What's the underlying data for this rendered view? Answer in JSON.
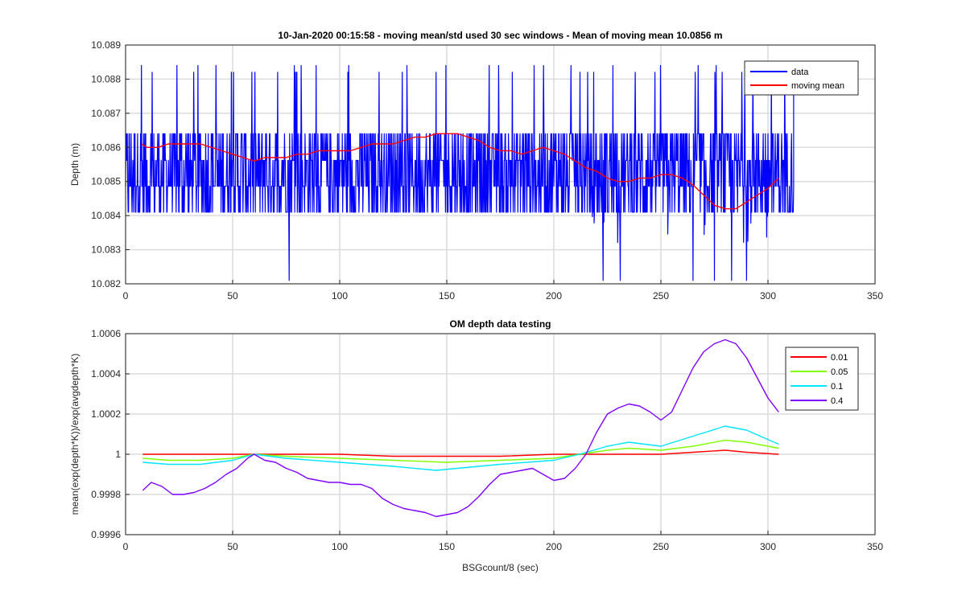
{
  "chart_data": [
    {
      "type": "line",
      "title": "10-Jan-2020 00:15:58 - moving mean/std used 30 sec windows - Mean of moving mean 10.0856 m",
      "xlabel": "",
      "ylabel": "Depth (m)",
      "xlim": [
        0,
        350
      ],
      "ylim": [
        10.082,
        10.089
      ],
      "xticks": [
        "0",
        "50",
        "100",
        "150",
        "200",
        "250",
        "300",
        "350"
      ],
      "yticks": [
        "10.082",
        "10.083",
        "10.084",
        "10.085",
        "10.086",
        "10.087",
        "10.088",
        "10.089"
      ],
      "grid": true,
      "legend_position": "top-right",
      "series": [
        {
          "name": "data",
          "color": "#0000ff",
          "data_range_x": [
            0,
            312
          ],
          "typical_band": [
            10.0841,
            10.0864
          ],
          "upper_spikes": [
            10.0882,
            10.0884
          ],
          "low_spikes": [
            [
              76.5,
              10.0821
            ],
            [
              223,
              10.0821
            ],
            [
              231,
              10.0821
            ],
            [
              265,
              10.0821
            ],
            [
              275,
              10.0821
            ],
            [
              283,
              10.0821
            ],
            [
              290,
              10.0821
            ]
          ]
        },
        {
          "name": "moving mean",
          "color": "#ff0000",
          "x": [
            7.5,
            10,
            15,
            20,
            25,
            30,
            35,
            40,
            45,
            50,
            55,
            60,
            65,
            70,
            75,
            80,
            85,
            90,
            95,
            100,
            105,
            110,
            115,
            120,
            125,
            130,
            135,
            140,
            145,
            150,
            155,
            160,
            165,
            170,
            175,
            180,
            185,
            190,
            195,
            200,
            205,
            210,
            215,
            220,
            225,
            230,
            235,
            240,
            245,
            250,
            255,
            260,
            265,
            270,
            275,
            280,
            285,
            290,
            295,
            300,
            305
          ],
          "y": [
            10.0861,
            10.086,
            10.086,
            10.0861,
            10.0861,
            10.0861,
            10.0861,
            10.086,
            10.0859,
            10.0858,
            10.0857,
            10.0856,
            10.0857,
            10.0857,
            10.0857,
            10.0858,
            10.0858,
            10.0859,
            10.0859,
            10.0859,
            10.0859,
            10.086,
            10.0861,
            10.0861,
            10.0861,
            10.0862,
            10.0863,
            10.0863,
            10.0864,
            10.0864,
            10.0864,
            10.0863,
            10.0862,
            10.086,
            10.0859,
            10.0859,
            10.0858,
            10.0859,
            10.086,
            10.0859,
            10.0858,
            10.0856,
            10.0854,
            10.0853,
            10.0851,
            10.085,
            10.085,
            10.0851,
            10.0851,
            10.0852,
            10.0852,
            10.0851,
            10.0849,
            10.0846,
            10.0843,
            10.0842,
            10.0842,
            10.0844,
            10.0846,
            10.0848,
            10.0851
          ]
        }
      ]
    },
    {
      "type": "line",
      "title": "OM depth data testing",
      "xlabel": "BSGcount/8 (sec)",
      "ylabel": "mean(exp(depth*K))/exp(avgdepth*K)",
      "xlim": [
        0,
        350
      ],
      "ylim": [
        0.9996,
        1.0006
      ],
      "xticks": [
        "0",
        "50",
        "100",
        "150",
        "200",
        "250",
        "300",
        "350"
      ],
      "yticks": [
        "0.9996",
        "0.9998",
        "1",
        "1.0002",
        "1.0004",
        "1.0006"
      ],
      "grid": true,
      "legend_position": "top-right",
      "series": [
        {
          "name": "0.01",
          "color": "#ff0000",
          "x": [
            8,
            25,
            50,
            60,
            80,
            100,
            125,
            150,
            175,
            200,
            212,
            225,
            250,
            265,
            280,
            290,
            305
          ],
          "y": [
            1.0,
            1.0,
            1.0,
            1.0,
            1.0,
            1.0,
            0.99999,
            0.99999,
            0.99999,
            1.0,
            1.0,
            1.0,
            1.0,
            1.00001,
            1.00002,
            1.00001,
            1.0
          ]
        },
        {
          "name": "0.05",
          "color": "#80ff00",
          "x": [
            8,
            20,
            35,
            50,
            60,
            75,
            100,
            125,
            150,
            175,
            200,
            212,
            225,
            235,
            250,
            265,
            280,
            290,
            305
          ],
          "y": [
            0.99998,
            0.99997,
            0.99997,
            0.99998,
            1.0,
            0.99999,
            0.99998,
            0.99997,
            0.99996,
            0.99997,
            0.99998,
            1.0,
            1.00002,
            1.00003,
            1.00002,
            1.00004,
            1.00007,
            1.00006,
            1.00003
          ]
        },
        {
          "name": "0.1",
          "color": "#00e5ff",
          "x": [
            8,
            20,
            35,
            50,
            60,
            75,
            100,
            125,
            145,
            155,
            175,
            200,
            212,
            225,
            235,
            250,
            265,
            280,
            290,
            305
          ],
          "y": [
            0.99996,
            0.99995,
            0.99995,
            0.99997,
            1.0,
            0.99998,
            0.99996,
            0.99994,
            0.99992,
            0.99993,
            0.99995,
            0.99997,
            1.0,
            1.00004,
            1.00006,
            1.00004,
            1.00009,
            1.00014,
            1.00012,
            1.00005
          ]
        },
        {
          "name": "0.4",
          "color": "#7f00ff",
          "x": [
            8,
            12,
            17,
            22,
            27,
            32,
            37,
            42,
            47,
            52,
            57,
            60,
            65,
            70,
            75,
            80,
            85,
            90,
            95,
            100,
            105,
            110,
            115,
            120,
            125,
            130,
            135,
            140,
            145,
            150,
            155,
            160,
            165,
            170,
            175,
            180,
            185,
            190,
            195,
            200,
            205,
            210,
            215,
            220,
            225,
            230,
            235,
            240,
            245,
            250,
            255,
            260,
            265,
            270,
            275,
            280,
            285,
            290,
            295,
            300,
            305
          ],
          "y": [
            0.99982,
            0.99986,
            0.99984,
            0.9998,
            0.9998,
            0.99981,
            0.99983,
            0.99986,
            0.9999,
            0.99993,
            0.99998,
            1.0,
            0.99997,
            0.99996,
            0.99993,
            0.99991,
            0.99988,
            0.99987,
            0.99986,
            0.99986,
            0.99985,
            0.99985,
            0.99983,
            0.99978,
            0.99975,
            0.99973,
            0.99972,
            0.99971,
            0.99969,
            0.9997,
            0.99971,
            0.99974,
            0.99979,
            0.99985,
            0.9999,
            0.99991,
            0.99992,
            0.99993,
            0.9999,
            0.99987,
            0.99988,
            0.99993,
            1.0,
            1.00011,
            1.0002,
            1.00023,
            1.00025,
            1.00024,
            1.00021,
            1.00017,
            1.00021,
            1.00032,
            1.00043,
            1.00051,
            1.00055,
            1.00057,
            1.00055,
            1.00048,
            1.00038,
            1.00028,
            1.00021
          ]
        }
      ]
    }
  ]
}
